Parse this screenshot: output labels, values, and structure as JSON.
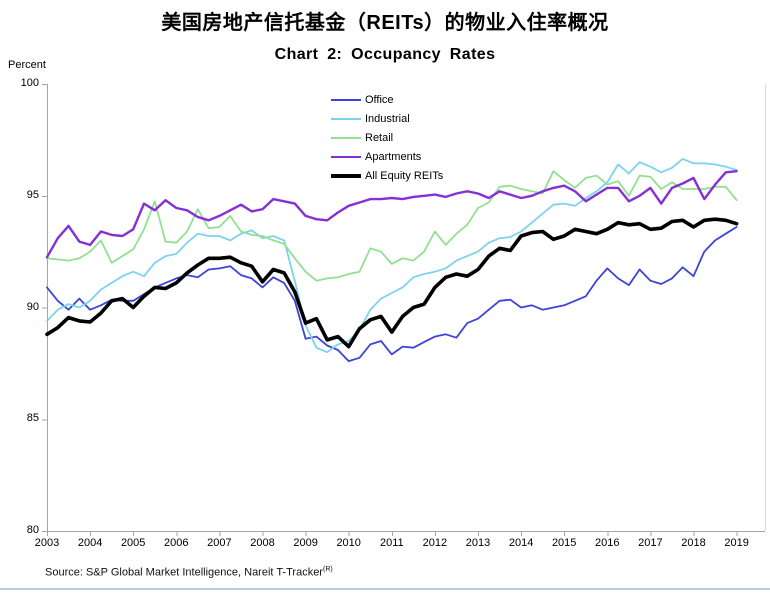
{
  "page": {
    "title_cn": "美国房地产信托基金（REITs）的物业入住率概况",
    "source_note": "Source: S&P Global Market Intelligence, Nareit T-Tracker",
    "source_superscript": "(R)"
  },
  "chart_data": {
    "type": "line",
    "title": "Chart 2: Occupancy Rates",
    "y_axis_unit": "Percent",
    "ylim": [
      80,
      100
    ],
    "yticks": [
      80,
      85,
      90,
      95,
      100
    ],
    "grid": false,
    "legend_position": "top-center-inside",
    "x_tick_labels": [
      "2003",
      "2004",
      "2005",
      "2006",
      "2007",
      "2008",
      "2009",
      "2010",
      "2011",
      "2012",
      "2013",
      "2014",
      "2015",
      "2016",
      "2017",
      "2018",
      "2019"
    ],
    "x_frequency": "quarterly",
    "x_range": "2003Q1–2019Q1",
    "axis_color": "#a6a6a6",
    "frame_color": "#d9d9d9",
    "bottom_rule_color": "#b8cce4",
    "series": [
      {
        "name": "Office",
        "color": "#3c44d4",
        "width": 1.8,
        "values": [
          90.9,
          90.3,
          89.9,
          90.4,
          89.9,
          90.1,
          90.35,
          90.3,
          90.3,
          90.6,
          90.9,
          91.1,
          91.3,
          91.45,
          91.35,
          91.7,
          91.75,
          91.85,
          91.45,
          91.3,
          90.9,
          91.35,
          91.1,
          90.3,
          88.6,
          88.7,
          88.3,
          88.1,
          87.6,
          87.75,
          88.35,
          88.5,
          87.9,
          88.25,
          88.2,
          88.45,
          88.7,
          88.8,
          88.65,
          89.3,
          89.5,
          89.9,
          90.3,
          90.35,
          90.0,
          90.1,
          89.9,
          90.0,
          90.1,
          90.3,
          90.5,
          91.2,
          91.75,
          91.3,
          91.0,
          91.7,
          91.2,
          91.05,
          91.3,
          91.8,
          91.4,
          92.5,
          93.0,
          93.3,
          93.6
        ]
      },
      {
        "name": "Industrial",
        "color": "#7dd3ee",
        "width": 1.8,
        "values": [
          89.4,
          89.9,
          90.15,
          90.0,
          90.3,
          90.8,
          91.1,
          91.4,
          91.6,
          91.4,
          92.0,
          92.3,
          92.4,
          92.9,
          93.3,
          93.2,
          93.2,
          93.0,
          93.3,
          93.45,
          93.1,
          93.2,
          93.0,
          91.2,
          89.2,
          88.2,
          88.0,
          88.35,
          88.5,
          89.0,
          89.9,
          90.4,
          90.65,
          90.9,
          91.35,
          91.5,
          91.6,
          91.75,
          92.1,
          92.3,
          92.5,
          92.9,
          93.1,
          93.15,
          93.4,
          93.8,
          94.2,
          94.6,
          94.65,
          94.55,
          94.9,
          95.2,
          95.6,
          96.4,
          96.0,
          96.5,
          96.3,
          96.05,
          96.25,
          96.65,
          96.45,
          96.45,
          96.4,
          96.3,
          96.15
        ]
      },
      {
        "name": "Retail",
        "color": "#92e092",
        "width": 1.8,
        "values": [
          92.2,
          92.15,
          92.1,
          92.2,
          92.5,
          93.0,
          92.0,
          92.3,
          92.6,
          93.5,
          94.75,
          92.95,
          92.9,
          93.4,
          94.4,
          93.55,
          93.6,
          94.1,
          93.4,
          93.25,
          93.2,
          93.0,
          92.85,
          92.2,
          91.6,
          91.2,
          91.3,
          91.35,
          91.5,
          91.6,
          92.65,
          92.5,
          91.95,
          92.2,
          92.1,
          92.5,
          93.4,
          92.8,
          93.3,
          93.7,
          94.45,
          94.7,
          95.4,
          95.45,
          95.3,
          95.2,
          95.1,
          96.1,
          95.7,
          95.35,
          95.8,
          95.9,
          95.5,
          95.65,
          95.0,
          95.9,
          95.85,
          95.3,
          95.6,
          95.3,
          95.3,
          95.3,
          95.4,
          95.4,
          94.8
        ]
      },
      {
        "name": "Apartments",
        "color": "#8430d4",
        "width": 2.4,
        "values": [
          92.25,
          93.1,
          93.65,
          92.95,
          92.8,
          93.4,
          93.25,
          93.2,
          93.5,
          94.65,
          94.35,
          94.8,
          94.45,
          94.35,
          94.05,
          93.9,
          94.1,
          94.35,
          94.6,
          94.3,
          94.4,
          94.85,
          94.75,
          94.65,
          94.1,
          93.95,
          93.9,
          94.25,
          94.55,
          94.7,
          94.85,
          94.85,
          94.9,
          94.85,
          94.95,
          95.0,
          95.05,
          94.95,
          95.1,
          95.2,
          95.1,
          94.9,
          95.2,
          95.05,
          94.9,
          95.0,
          95.2,
          95.35,
          95.45,
          95.2,
          94.75,
          95.05,
          95.35,
          95.35,
          94.75,
          95.0,
          95.35,
          94.65,
          95.35,
          95.55,
          95.8,
          94.85,
          95.5,
          96.05,
          96.1
        ]
      },
      {
        "name": "All Equity REITs",
        "color": "#000000",
        "width": 3.6,
        "values": [
          88.8,
          89.1,
          89.55,
          89.4,
          89.35,
          89.75,
          90.3,
          90.4,
          90.0,
          90.5,
          90.9,
          90.85,
          91.1,
          91.55,
          91.9,
          92.2,
          92.2,
          92.25,
          92.0,
          91.85,
          91.15,
          91.7,
          91.55,
          90.7,
          89.3,
          89.5,
          88.55,
          88.7,
          88.25,
          89.05,
          89.45,
          89.6,
          88.9,
          89.6,
          90.0,
          90.15,
          90.9,
          91.35,
          91.5,
          91.4,
          91.7,
          92.3,
          92.65,
          92.55,
          93.2,
          93.35,
          93.4,
          93.05,
          93.2,
          93.5,
          93.4,
          93.3,
          93.5,
          93.8,
          93.7,
          93.75,
          93.5,
          93.55,
          93.85,
          93.9,
          93.6,
          93.9,
          93.95,
          93.9,
          93.75
        ]
      }
    ]
  }
}
